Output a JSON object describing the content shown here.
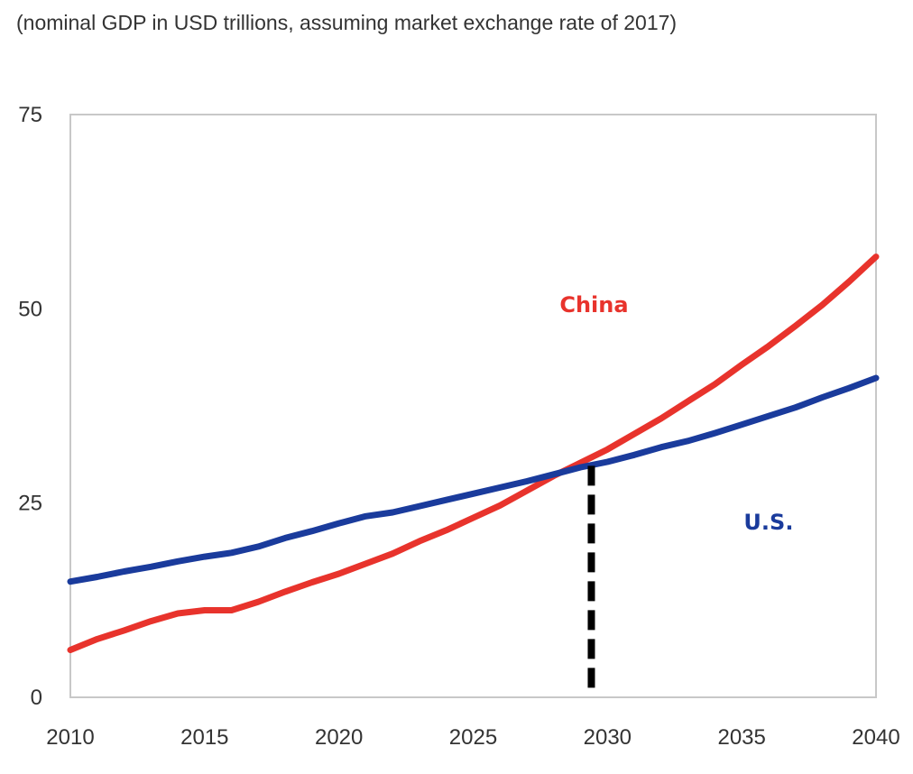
{
  "chart_data": {
    "type": "line",
    "title": "(nominal GDP in USD trillions, assuming market exchange rate of 2017)",
    "xlabel": "",
    "ylabel": "",
    "xlim": [
      2010,
      2040
    ],
    "ylim": [
      0,
      75
    ],
    "x_ticks": [
      2010,
      2015,
      2020,
      2025,
      2030,
      2035,
      2040
    ],
    "y_ticks": [
      0,
      25,
      50,
      75
    ],
    "grid": false,
    "legend": "inline labels",
    "x": [
      2010,
      2011,
      2012,
      2013,
      2014,
      2015,
      2016,
      2017,
      2018,
      2019,
      2020,
      2021,
      2022,
      2023,
      2024,
      2025,
      2026,
      2027,
      2028,
      2029,
      2030,
      2031,
      2032,
      2033,
      2034,
      2035,
      2036,
      2037,
      2038,
      2039,
      2040
    ],
    "series": [
      {
        "name": "China",
        "color": "#e8332c",
        "label_at": [
          2029.5,
          50.5
        ],
        "values": [
          6.1,
          7.5,
          8.6,
          9.8,
          10.8,
          11.2,
          11.2,
          12.3,
          13.6,
          14.8,
          15.9,
          17.2,
          18.5,
          20.1,
          21.5,
          23.1,
          24.7,
          26.6,
          28.5,
          30.2,
          31.9,
          33.9,
          35.9,
          38.1,
          40.3,
          42.8,
          45.2,
          47.8,
          50.5,
          53.5,
          56.7
        ]
      },
      {
        "name": "U.S.",
        "color": "#1a3b9c",
        "label_at": [
          2036,
          22.5
        ],
        "values": [
          14.9,
          15.5,
          16.2,
          16.8,
          17.5,
          18.1,
          18.6,
          19.4,
          20.5,
          21.4,
          22.4,
          23.3,
          23.8,
          24.6,
          25.4,
          26.2,
          27.0,
          27.8,
          28.7,
          29.6,
          30.3,
          31.2,
          32.2,
          33.0,
          34.0,
          35.1,
          36.2,
          37.3,
          38.6,
          39.8,
          41.1
        ]
      }
    ],
    "annotations": [
      {
        "type": "vertical-dashed-line",
        "x": 2029.4,
        "y_from": 0.5,
        "y_to": 29.8,
        "color": "#000000"
      }
    ]
  }
}
